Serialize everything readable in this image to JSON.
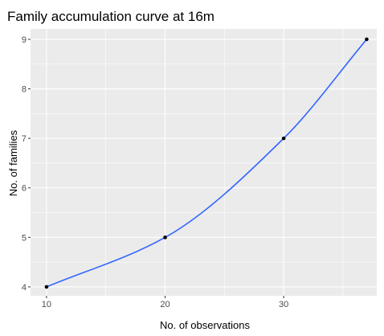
{
  "chart_data": {
    "type": "line",
    "title": "Family accumulation curve at 16m",
    "xlabel": "No. of observations",
    "ylabel": "No. of families",
    "xlim": [
      8.65,
      37.85
    ],
    "ylim": [
      3.82,
      9.21
    ],
    "x_ticks": [
      10,
      20,
      30
    ],
    "y_ticks": [
      4,
      5,
      6,
      7,
      8,
      9
    ],
    "grid": true,
    "points": [
      {
        "x": 10,
        "y": 4
      },
      {
        "x": 20,
        "y": 5
      },
      {
        "x": 30,
        "y": 7
      },
      {
        "x": 37,
        "y": 9
      }
    ],
    "series": [
      {
        "values": [
          [
            10,
            4
          ],
          [
            20,
            5
          ],
          [
            30,
            7
          ],
          [
            37,
            9
          ]
        ]
      }
    ],
    "colors": {
      "panel": "#ebebeb",
      "grid_major": "#ffffff",
      "line": "#3366ff",
      "point": "#000000"
    }
  }
}
